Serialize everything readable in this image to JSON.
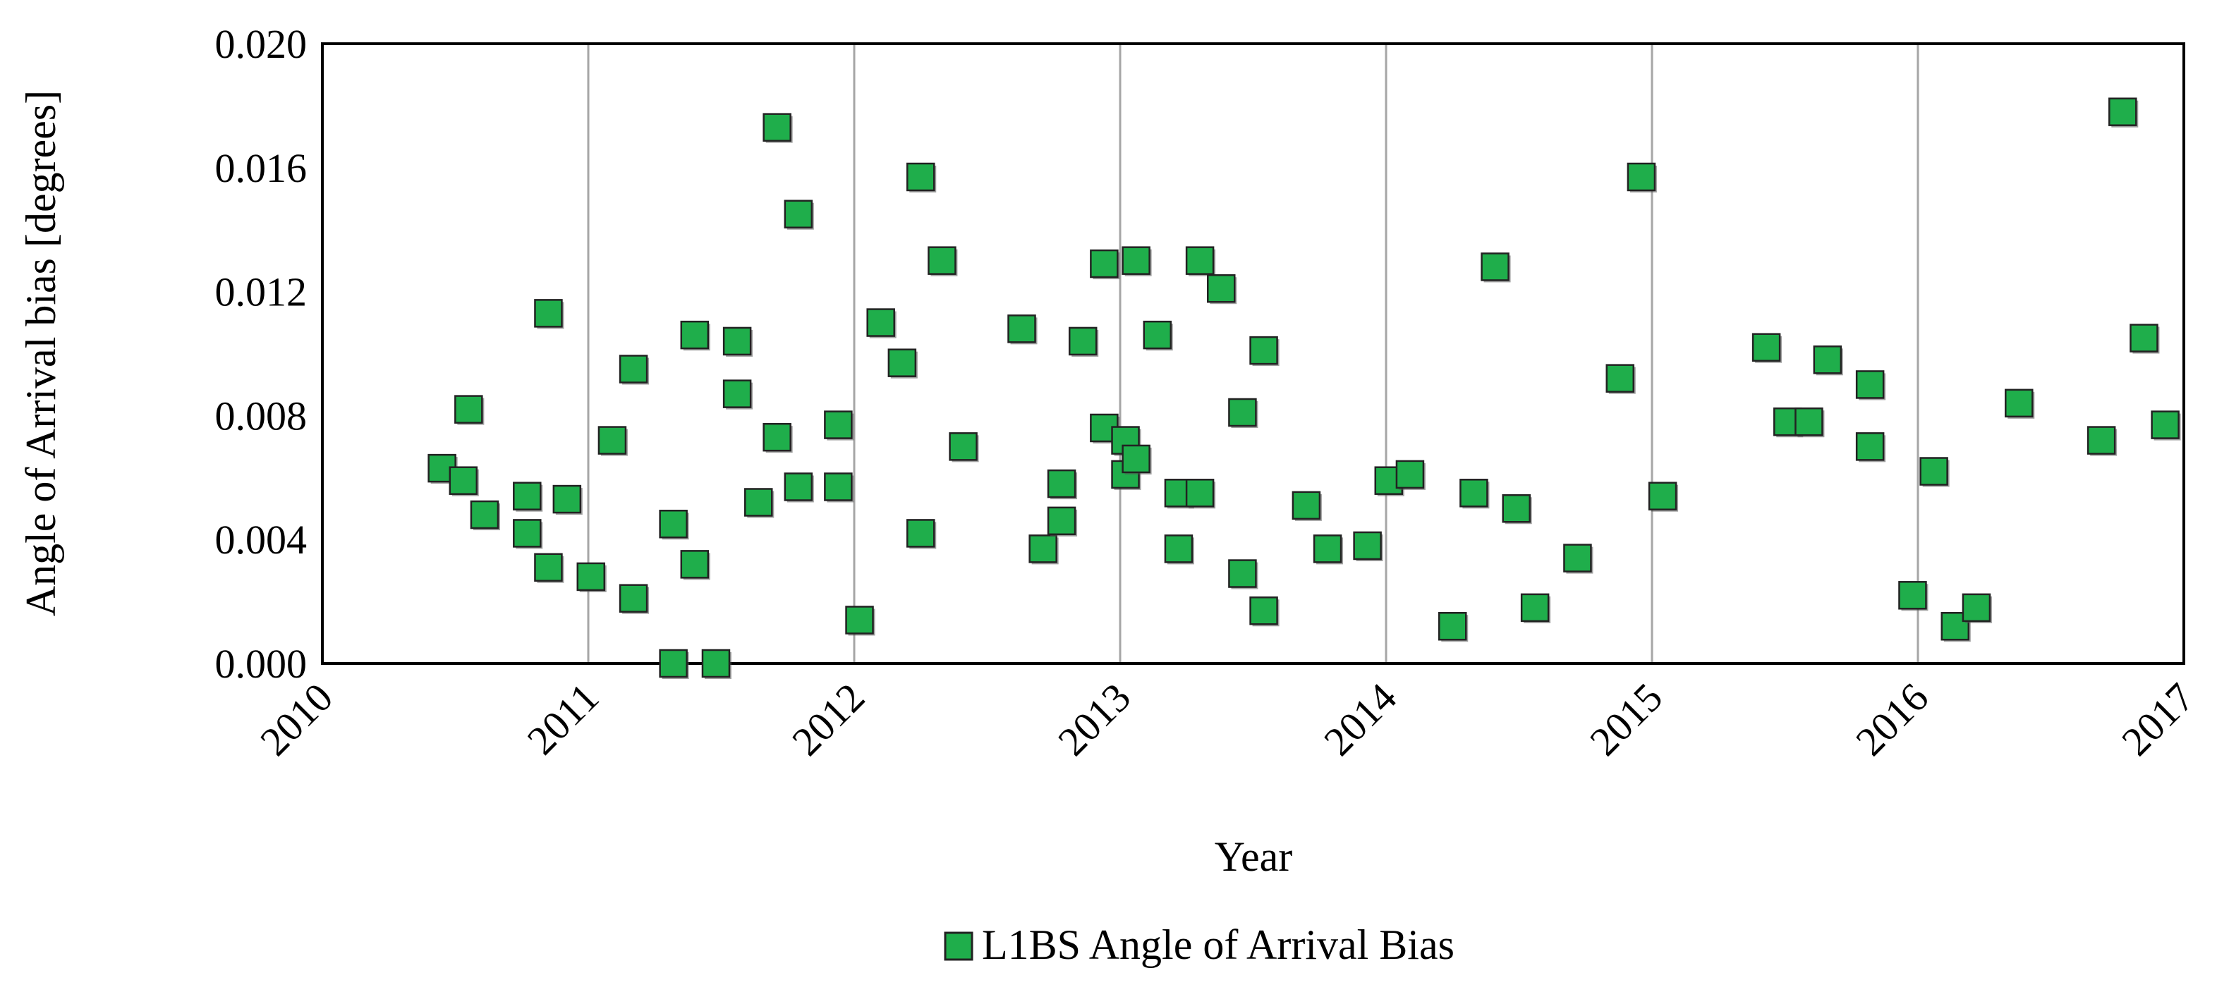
{
  "chart_data": {
    "type": "scatter",
    "xlabel": "Year",
    "ylabel": "Angle of Arrival bias  [degrees]",
    "xlim": [
      2010,
      2017
    ],
    "ylim": [
      0,
      0.02
    ],
    "x_ticks": [
      "2010",
      "2011",
      "2012",
      "2013",
      "2014",
      "2015",
      "2016",
      "2017"
    ],
    "y_ticks": [
      "0.000",
      "0.004",
      "0.008",
      "0.012",
      "0.016",
      "0.020"
    ],
    "grid": "vertical",
    "legend_position": "bottom",
    "series": [
      {
        "name": "L1BS Angle of Arrival Bias",
        "color": "#1fae4b",
        "points": [
          [
            2010.45,
            0.0063
          ],
          [
            2010.53,
            0.0059
          ],
          [
            2010.55,
            0.0082
          ],
          [
            2010.61,
            0.0048
          ],
          [
            2010.77,
            0.0054
          ],
          [
            2010.77,
            0.0042
          ],
          [
            2010.85,
            0.0031
          ],
          [
            2010.85,
            0.0113
          ],
          [
            2010.92,
            0.0053
          ],
          [
            2011.01,
            0.0028
          ],
          [
            2011.09,
            0.0072
          ],
          [
            2011.17,
            0.0021
          ],
          [
            2011.17,
            0.0095
          ],
          [
            2011.32,
            0.0
          ],
          [
            2011.32,
            0.0045
          ],
          [
            2011.4,
            0.0032
          ],
          [
            2011.4,
            0.0106
          ],
          [
            2011.48,
            0.0
          ],
          [
            2011.56,
            0.0104
          ],
          [
            2011.56,
            0.0087
          ],
          [
            2011.64,
            0.0052
          ],
          [
            2011.71,
            0.0073
          ],
          [
            2011.71,
            0.0173
          ],
          [
            2011.79,
            0.0057
          ],
          [
            2011.79,
            0.0145
          ],
          [
            2011.94,
            0.0057
          ],
          [
            2011.94,
            0.0077
          ],
          [
            2012.02,
            0.0014
          ],
          [
            2012.1,
            0.011
          ],
          [
            2012.18,
            0.0097
          ],
          [
            2012.25,
            0.0042
          ],
          [
            2012.25,
            0.0157
          ],
          [
            2012.33,
            0.013
          ],
          [
            2012.41,
            0.007
          ],
          [
            2012.63,
            0.0108
          ],
          [
            2012.71,
            0.0037
          ],
          [
            2012.78,
            0.0046
          ],
          [
            2012.78,
            0.0058
          ],
          [
            2012.86,
            0.0104
          ],
          [
            2012.94,
            0.0076
          ],
          [
            2012.94,
            0.0129
          ],
          [
            2013.02,
            0.0072
          ],
          [
            2013.02,
            0.0061
          ],
          [
            2013.06,
            0.0066
          ],
          [
            2013.06,
            0.013
          ],
          [
            2013.14,
            0.0106
          ],
          [
            2013.22,
            0.0037
          ],
          [
            2013.22,
            0.0055
          ],
          [
            2013.3,
            0.013
          ],
          [
            2013.3,
            0.0055
          ],
          [
            2013.38,
            0.0121
          ],
          [
            2013.46,
            0.0029
          ],
          [
            2013.46,
            0.0081
          ],
          [
            2013.54,
            0.0017
          ],
          [
            2013.54,
            0.0101
          ],
          [
            2013.7,
            0.0051
          ],
          [
            2013.78,
            0.0037
          ],
          [
            2013.93,
            0.0038
          ],
          [
            2014.01,
            0.0059
          ],
          [
            2014.09,
            0.0061
          ],
          [
            2014.25,
            0.0012
          ],
          [
            2014.33,
            0.0055
          ],
          [
            2014.41,
            0.0128
          ],
          [
            2014.49,
            0.005
          ],
          [
            2014.56,
            0.0018
          ],
          [
            2014.72,
            0.0034
          ],
          [
            2014.88,
            0.0092
          ],
          [
            2014.96,
            0.0157
          ],
          [
            2015.04,
            0.0054
          ],
          [
            2015.43,
            0.0102
          ],
          [
            2015.51,
            0.0078
          ],
          [
            2015.59,
            0.0078
          ],
          [
            2015.66,
            0.0098
          ],
          [
            2015.82,
            0.009
          ],
          [
            2015.82,
            0.007
          ],
          [
            2015.98,
            0.0022
          ],
          [
            2016.06,
            0.0062
          ],
          [
            2016.14,
            0.0012
          ],
          [
            2016.22,
            0.0018
          ],
          [
            2016.38,
            0.0084
          ],
          [
            2016.69,
            0.0072
          ],
          [
            2016.77,
            0.0178
          ],
          [
            2016.85,
            0.0105
          ],
          [
            2016.93,
            0.0077
          ]
        ]
      }
    ]
  }
}
